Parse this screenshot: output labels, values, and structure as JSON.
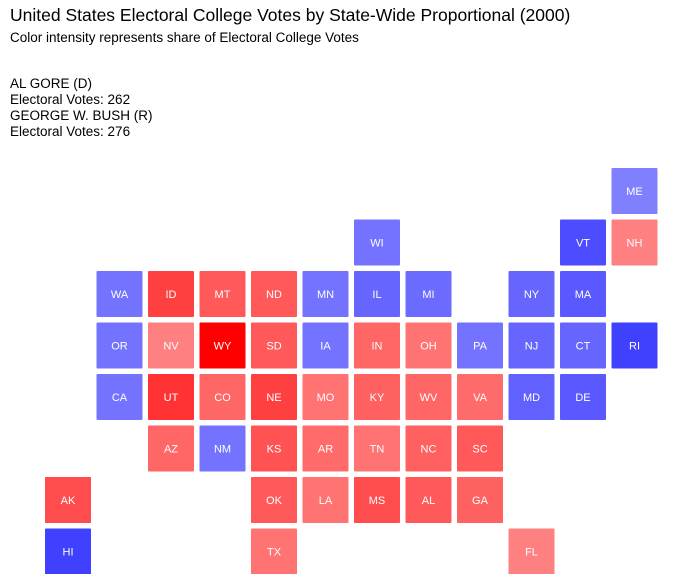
{
  "chart_data": {
    "type": "heatmap",
    "title": "United States Electoral College Votes by State-Wide Proportional (2000)",
    "subtitle": "Color intensity represents share of Electoral College Votes",
    "candidates": [
      {
        "name": "AL GORE (D)",
        "votes_label": "Electoral Votes: 262",
        "party": "D",
        "color": "#0000ff"
      },
      {
        "name": "GEORGE W. BUSH (R)",
        "votes_label": "Electoral Votes: 276",
        "party": "R",
        "color": "#ff0000"
      }
    ],
    "tiles": [
      {
        "state": "ME",
        "col": 11,
        "row": 0,
        "party": "D",
        "intensity": 0.5
      },
      {
        "state": "WI",
        "col": 6,
        "row": 1,
        "party": "D",
        "intensity": 0.55
      },
      {
        "state": "VT",
        "col": 10,
        "row": 1,
        "party": "D",
        "intensity": 0.7
      },
      {
        "state": "NH",
        "col": 11,
        "row": 1,
        "party": "R",
        "intensity": 0.5
      },
      {
        "state": "WA",
        "col": 1,
        "row": 2,
        "party": "D",
        "intensity": 0.55
      },
      {
        "state": "ID",
        "col": 2,
        "row": 2,
        "party": "R",
        "intensity": 0.75
      },
      {
        "state": "MT",
        "col": 3,
        "row": 2,
        "party": "R",
        "intensity": 0.65
      },
      {
        "state": "ND",
        "col": 4,
        "row": 2,
        "party": "R",
        "intensity": 0.65
      },
      {
        "state": "MN",
        "col": 5,
        "row": 2,
        "party": "D",
        "intensity": 0.55
      },
      {
        "state": "IL",
        "col": 6,
        "row": 2,
        "party": "D",
        "intensity": 0.6
      },
      {
        "state": "MI",
        "col": 7,
        "row": 2,
        "party": "D",
        "intensity": 0.58
      },
      {
        "state": "NY",
        "col": 9,
        "row": 2,
        "party": "D",
        "intensity": 0.6
      },
      {
        "state": "MA",
        "col": 10,
        "row": 2,
        "party": "D",
        "intensity": 0.65
      },
      {
        "state": "OR",
        "col": 1,
        "row": 3,
        "party": "D",
        "intensity": 0.55
      },
      {
        "state": "NV",
        "col": 2,
        "row": 3,
        "party": "R",
        "intensity": 0.5
      },
      {
        "state": "WY",
        "col": 3,
        "row": 3,
        "party": "R",
        "intensity": 1.0
      },
      {
        "state": "SD",
        "col": 4,
        "row": 3,
        "party": "R",
        "intensity": 0.65
      },
      {
        "state": "IA",
        "col": 5,
        "row": 3,
        "party": "D",
        "intensity": 0.55
      },
      {
        "state": "IN",
        "col": 6,
        "row": 3,
        "party": "R",
        "intensity": 0.6
      },
      {
        "state": "OH",
        "col": 7,
        "row": 3,
        "party": "R",
        "intensity": 0.55
      },
      {
        "state": "PA",
        "col": 8,
        "row": 3,
        "party": "D",
        "intensity": 0.55
      },
      {
        "state": "NJ",
        "col": 9,
        "row": 3,
        "party": "D",
        "intensity": 0.6
      },
      {
        "state": "CT",
        "col": 10,
        "row": 3,
        "party": "D",
        "intensity": 0.6
      },
      {
        "state": "RI",
        "col": 11,
        "row": 3,
        "party": "D",
        "intensity": 0.75
      },
      {
        "state": "CA",
        "col": 1,
        "row": 4,
        "party": "D",
        "intensity": 0.55
      },
      {
        "state": "UT",
        "col": 2,
        "row": 4,
        "party": "R",
        "intensity": 0.8
      },
      {
        "state": "CO",
        "col": 3,
        "row": 4,
        "party": "R",
        "intensity": 0.6
      },
      {
        "state": "NE",
        "col": 4,
        "row": 4,
        "party": "R",
        "intensity": 0.75
      },
      {
        "state": "MO",
        "col": 5,
        "row": 4,
        "party": "R",
        "intensity": 0.55
      },
      {
        "state": "KY",
        "col": 6,
        "row": 4,
        "party": "R",
        "intensity": 0.62
      },
      {
        "state": "WV",
        "col": 7,
        "row": 4,
        "party": "R",
        "intensity": 0.6
      },
      {
        "state": "VA",
        "col": 8,
        "row": 4,
        "party": "R",
        "intensity": 0.58
      },
      {
        "state": "MD",
        "col": 9,
        "row": 4,
        "party": "D",
        "intensity": 0.62
      },
      {
        "state": "DE",
        "col": 10,
        "row": 4,
        "party": "D",
        "intensity": 0.65
      },
      {
        "state": "AZ",
        "col": 2,
        "row": 5,
        "party": "R",
        "intensity": 0.6
      },
      {
        "state": "NM",
        "col": 3,
        "row": 5,
        "party": "D",
        "intensity": 0.55
      },
      {
        "state": "KS",
        "col": 4,
        "row": 5,
        "party": "R",
        "intensity": 0.68
      },
      {
        "state": "AR",
        "col": 5,
        "row": 5,
        "party": "R",
        "intensity": 0.58
      },
      {
        "state": "TN",
        "col": 6,
        "row": 5,
        "party": "R",
        "intensity": 0.55
      },
      {
        "state": "NC",
        "col": 7,
        "row": 5,
        "party": "R",
        "intensity": 0.62
      },
      {
        "state": "SC",
        "col": 8,
        "row": 5,
        "party": "R",
        "intensity": 0.65
      },
      {
        "state": "AK",
        "col": 0,
        "row": 6,
        "party": "R",
        "intensity": 0.7
      },
      {
        "state": "OK",
        "col": 4,
        "row": 6,
        "party": "R",
        "intensity": 0.65
      },
      {
        "state": "LA",
        "col": 5,
        "row": 6,
        "party": "R",
        "intensity": 0.55
      },
      {
        "state": "MS",
        "col": 6,
        "row": 6,
        "party": "R",
        "intensity": 0.7
      },
      {
        "state": "AL",
        "col": 7,
        "row": 6,
        "party": "R",
        "intensity": 0.65
      },
      {
        "state": "GA",
        "col": 8,
        "row": 6,
        "party": "R",
        "intensity": 0.62
      },
      {
        "state": "HI",
        "col": 0,
        "row": 7,
        "party": "D",
        "intensity": 0.75
      },
      {
        "state": "TX",
        "col": 4,
        "row": 7,
        "party": "R",
        "intensity": 0.55
      },
      {
        "state": "FL",
        "col": 9,
        "row": 7,
        "party": "R",
        "intensity": 0.5
      }
    ]
  }
}
